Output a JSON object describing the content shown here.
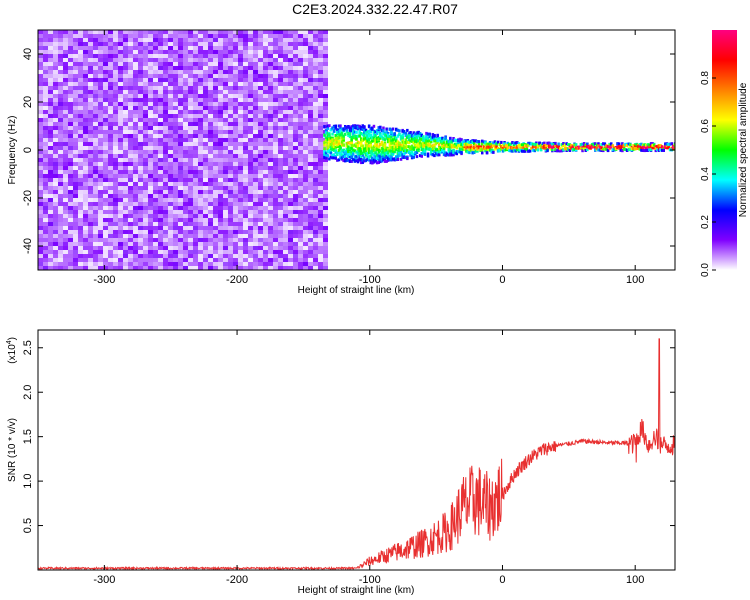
{
  "title": "C2E3.2024.332.22.47.R07",
  "chart_data": [
    {
      "type": "heatmap",
      "xlabel": "Height of straight line (km)",
      "ylabel": "Frequency (Hz)",
      "xlim": [
        -350,
        130
      ],
      "ylim": [
        -50,
        50
      ],
      "x_ticks": [
        -300,
        -200,
        -100,
        0,
        100
      ],
      "y_ticks": [
        -40,
        -20,
        0,
        20,
        40
      ],
      "noise_region": {
        "x": [
          -350,
          -135
        ],
        "y": [
          -50,
          50
        ]
      },
      "signal_track": [
        {
          "x": -135,
          "center": 3,
          "spread": 7
        },
        {
          "x": -100,
          "center": 2,
          "spread": 8
        },
        {
          "x": -60,
          "center": 2,
          "spread": 5
        },
        {
          "x": -30,
          "center": 1,
          "spread": 3
        },
        {
          "x": 0,
          "center": 1,
          "spread": 2
        },
        {
          "x": 50,
          "center": 1,
          "spread": 1.5
        },
        {
          "x": 130,
          "center": 1,
          "spread": 1.5
        }
      ],
      "colorbar": {
        "label": "Normalized spectral amplitude",
        "range": [
          0,
          1
        ],
        "ticks": [
          "0.0",
          "0.2",
          "0.4",
          "0.6",
          "0.8"
        ],
        "colormap": [
          "#ffffff",
          "#8000ff",
          "#0000ff",
          "#00ffff",
          "#00ff00",
          "#ffff00",
          "#ff8000",
          "#ff0000",
          "#ff0080"
        ]
      },
      "grid": false
    },
    {
      "type": "line",
      "xlabel": "Height of straight line (km)",
      "ylabel": "SNR (10 * v/v)",
      "scale_label": "(x10",
      "scale_exp": "4",
      "scale_close": ")",
      "xlim": [
        -350,
        130
      ],
      "ylim": [
        0,
        2.7
      ],
      "x_ticks": [
        -300,
        -200,
        -100,
        0,
        100
      ],
      "y_ticks": [
        "0.5",
        "1.0",
        "1.5",
        "2.0",
        "2.5"
      ],
      "line_color": "#e83030",
      "series": [
        {
          "x": [
            -350,
            -200,
            -110,
            -100,
            -80,
            -60,
            -40,
            -30,
            -20,
            -10,
            0,
            10,
            20,
            30,
            40,
            50,
            60,
            70,
            80,
            90,
            100,
            105,
            110,
            115,
            120,
            130
          ],
          "y": [
            0.02,
            0.02,
            0.02,
            0.1,
            0.2,
            0.3,
            0.45,
            0.7,
            0.8,
            0.7,
            0.85,
            1.1,
            1.25,
            1.35,
            1.4,
            1.42,
            1.45,
            1.44,
            1.43,
            1.43,
            1.42,
            1.6,
            1.4,
            1.5,
            1.4,
            1.4
          ]
        }
      ],
      "grid": false
    }
  ]
}
